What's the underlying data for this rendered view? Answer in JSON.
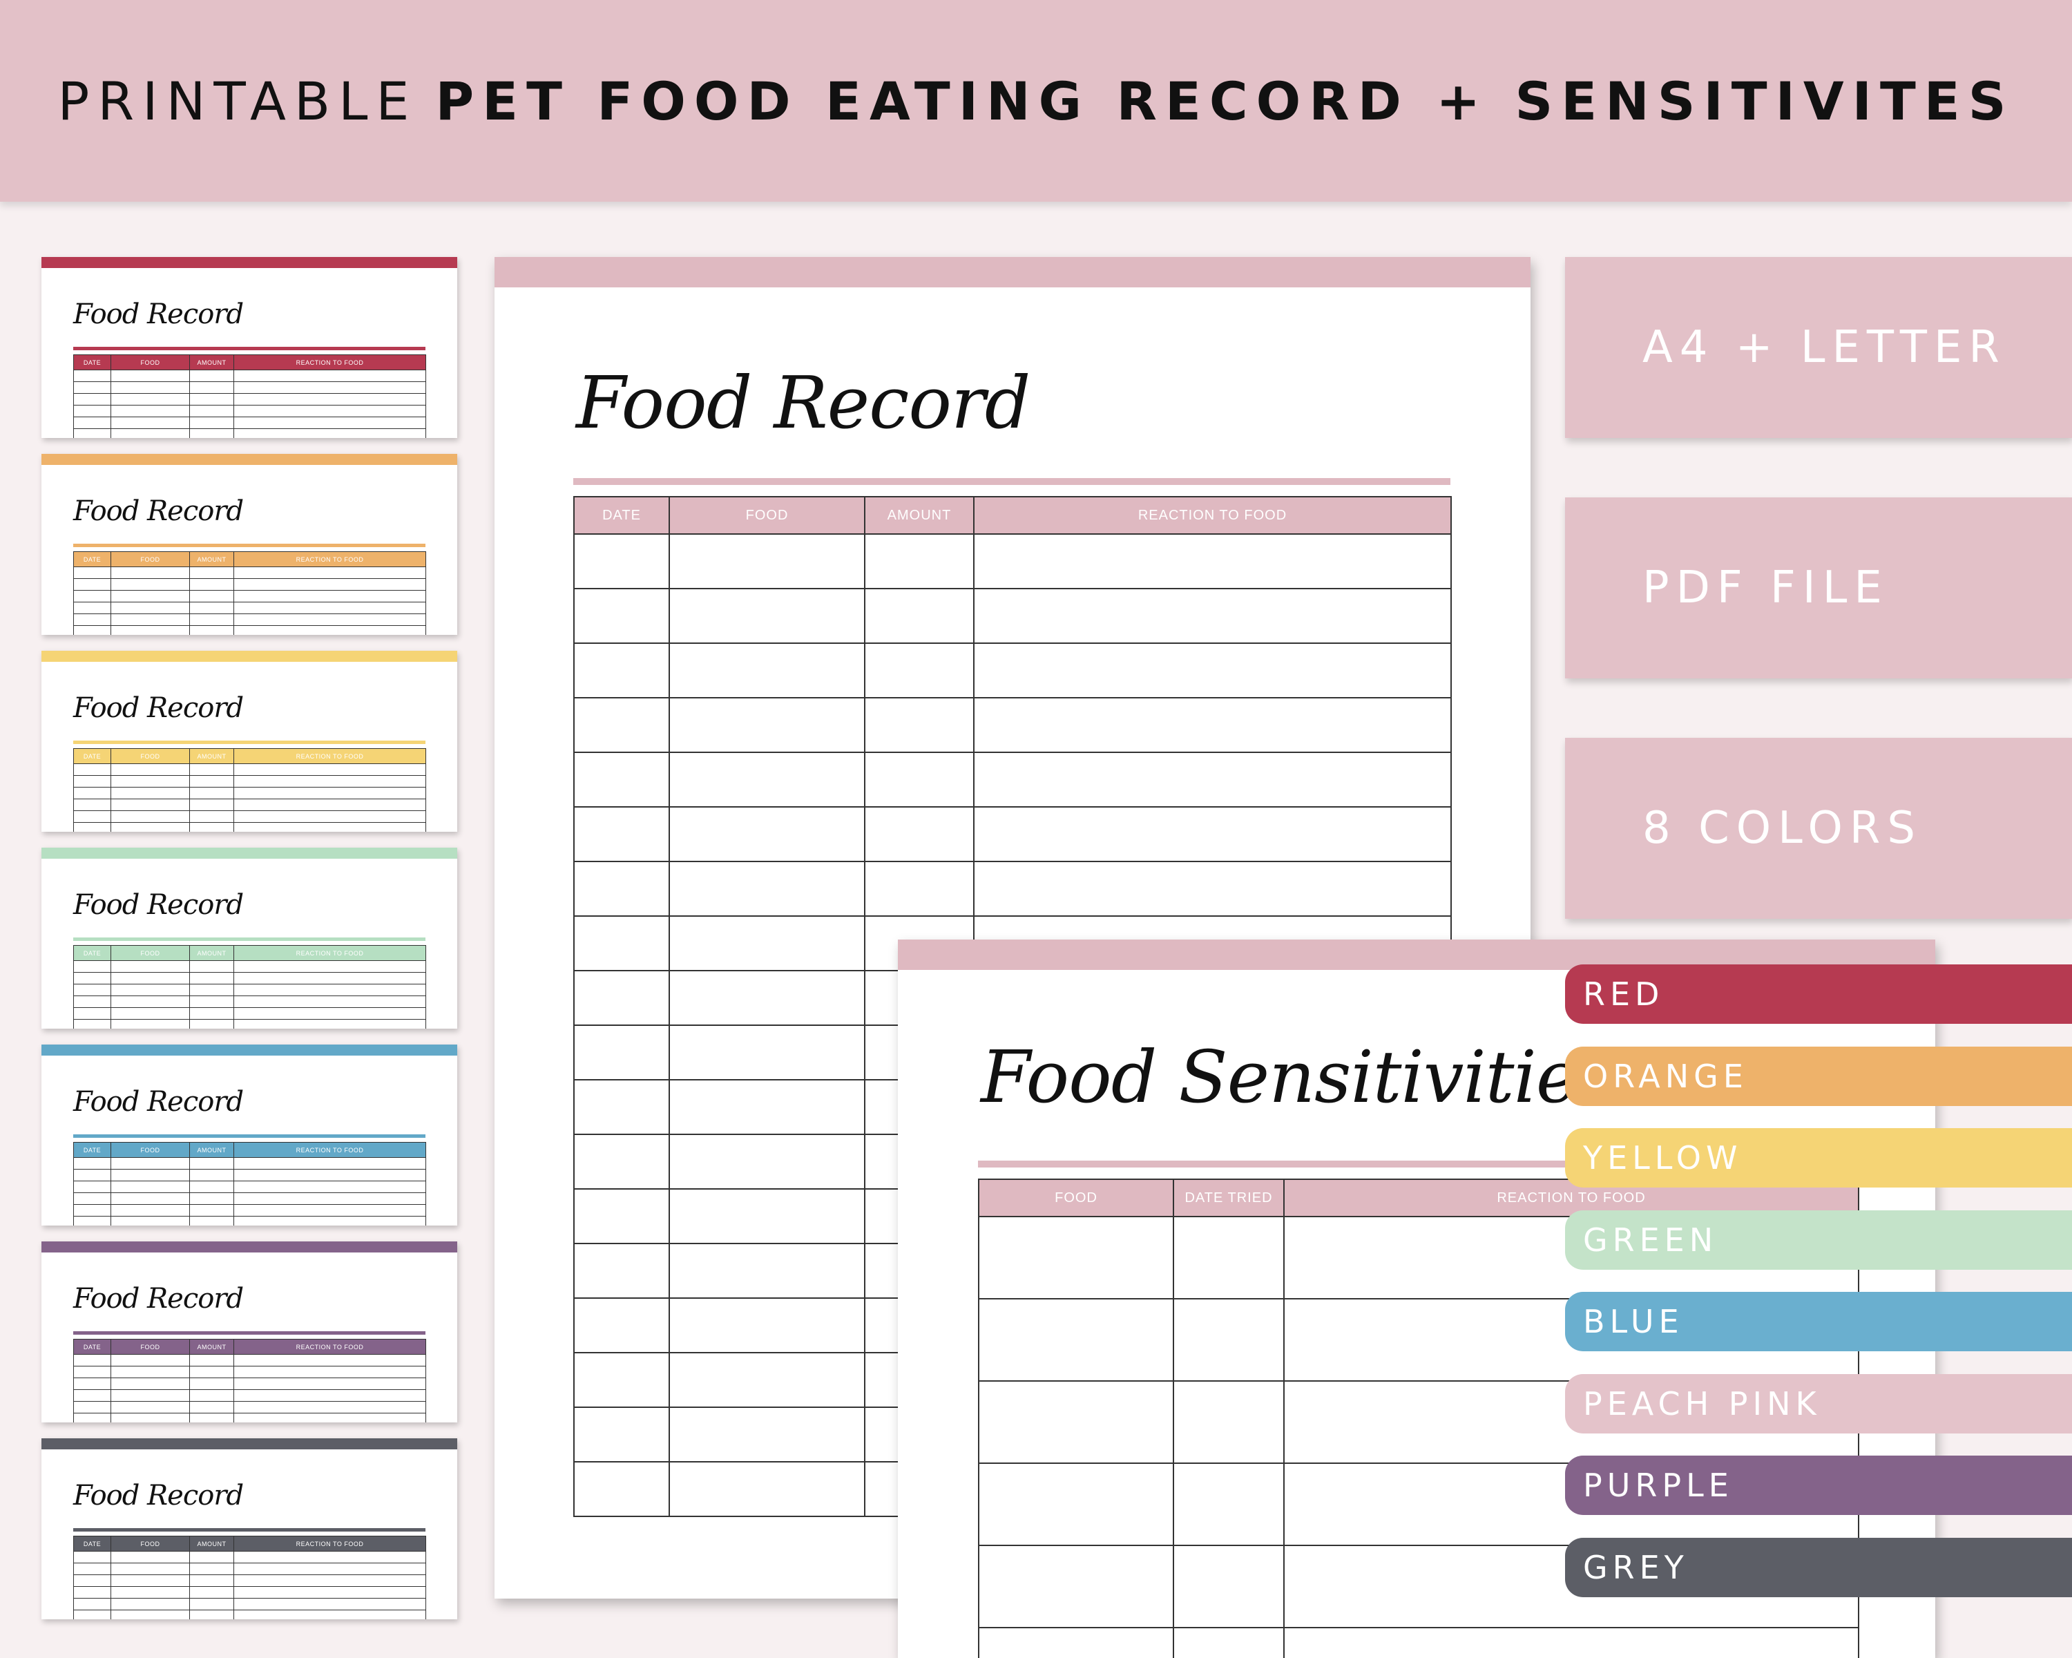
{
  "header": {
    "title_light": "PRINTABLE",
    "title_bold": "PET FOOD EATING RECORD + SENSITIVITES"
  },
  "thumbnails": {
    "title": "Food Record",
    "columns": [
      "DATE",
      "FOOD",
      "AMOUNT",
      "REACTION TO FOOD"
    ],
    "colors": [
      "#b63a51",
      "#eeb26a",
      "#f5d475",
      "#b6dfc2",
      "#62a8c8",
      "#84638a",
      "#5c5e66"
    ]
  },
  "food_record": {
    "title": "Food Record",
    "columns": [
      "DATE",
      "FOOD",
      "AMOUNT",
      "REACTION TO FOOD"
    ]
  },
  "food_sensitivities": {
    "title": "Food Sensitivities",
    "columns": [
      "FOOD",
      "DATE TRIED",
      "REACTION TO FOOD"
    ]
  },
  "panels": {
    "format": "A4 + LETTER",
    "file": "PDF FILE",
    "colors_count": "8 COLORS"
  },
  "color_tabs": [
    {
      "label": "RED",
      "color": "#b63a51"
    },
    {
      "label": "ORANGE",
      "color": "#eeb26a"
    },
    {
      "label": "YELLOW",
      "color": "#f5d475"
    },
    {
      "label": "GREEN",
      "color": "#c4e3c9"
    },
    {
      "label": "BLUE",
      "color": "#6aafcf"
    },
    {
      "label": "PEACH PINK",
      "color": "#e4c3ca"
    },
    {
      "label": "PURPLE",
      "color": "#84638a"
    },
    {
      "label": "GREY",
      "color": "#5c5e66"
    }
  ]
}
